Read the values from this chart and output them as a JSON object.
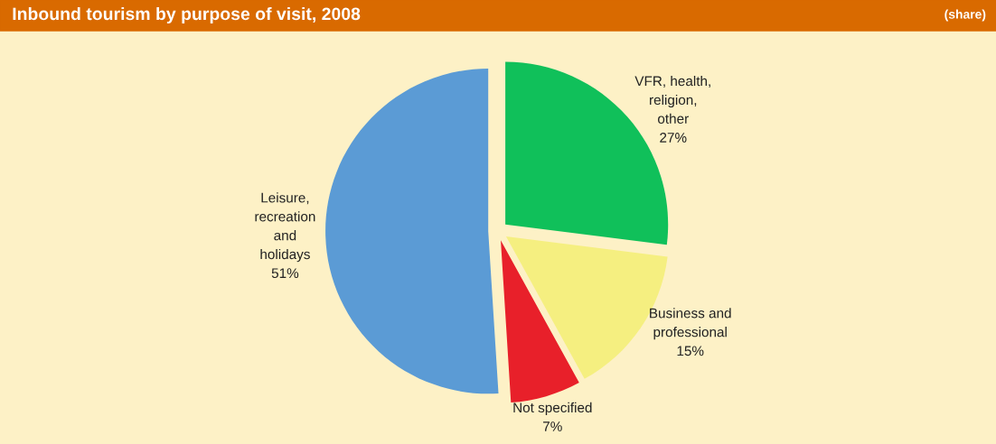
{
  "chart_data": {
    "type": "pie",
    "title": "Inbound tourism by purpose of visit, 2008",
    "subtitle": "(share)",
    "categories": [
      "VFR, health,\nreligion,\nother",
      "Business and\nprofessional",
      "Not specified",
      "Leisure,\nrecreation\nand\nholidays"
    ],
    "values": [
      27,
      15,
      7,
      51
    ],
    "colors": [
      "#10c05a",
      "#f5ef80",
      "#e8202a",
      "#5b9bd5"
    ],
    "value_labels": [
      "27%",
      "15%",
      "7%",
      "51%"
    ],
    "legend": false
  }
}
